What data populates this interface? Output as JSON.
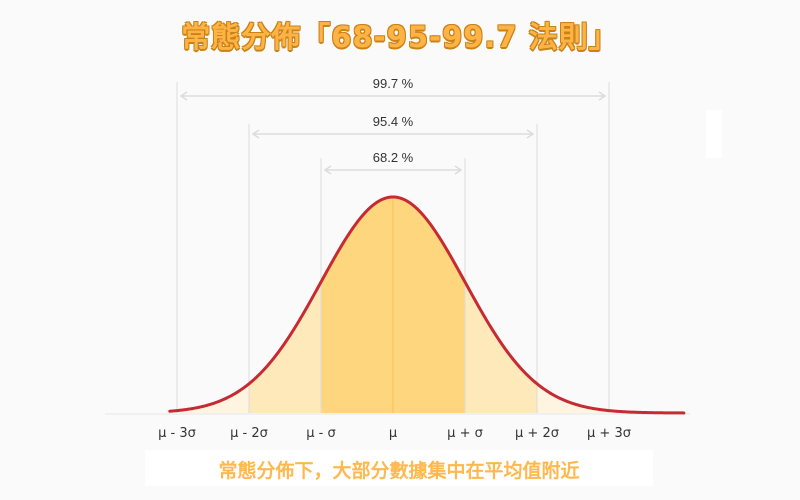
{
  "title": "常態分佈「68-95-99.7 法則」",
  "caption": "常態分佈下，大部分數據集中在平均值附近",
  "colors": {
    "title_fill": "#ffb347",
    "title_stroke": "#c98214",
    "curve": "#c62a32",
    "band_1sigma": "#fdd67e",
    "band_2sigma": "#fde9ba",
    "band_3sigma": "#fef4e0",
    "guide_line": "#dcdcdc",
    "caption": "#ffb84d"
  },
  "chart_data": {
    "type": "area",
    "title": "常態分佈「68-95-99.7 法則」",
    "subtitle": "常態分佈下，大部分數據集中在平均值附近",
    "xlabel": "",
    "ylabel": "",
    "x_ticks": [
      "μ - 3σ",
      "μ - 2σ",
      "μ - σ",
      "μ",
      "μ + σ",
      "μ + 2σ",
      "μ + 3σ"
    ],
    "x_tick_values": [
      -3,
      -2,
      -1,
      0,
      1,
      2,
      3
    ],
    "xlim": [
      -3.1,
      4.0
    ],
    "grid": false,
    "legend": "none",
    "curve": "standard normal density",
    "intervals": [
      {
        "label": "68.2 %",
        "from": -1,
        "to": 1,
        "percent": 68.2
      },
      {
        "label": "95.4 %",
        "from": -2,
        "to": 2,
        "percent": 95.4
      },
      {
        "label": "99.7 %",
        "from": -3,
        "to": 3,
        "percent": 99.7
      }
    ]
  }
}
